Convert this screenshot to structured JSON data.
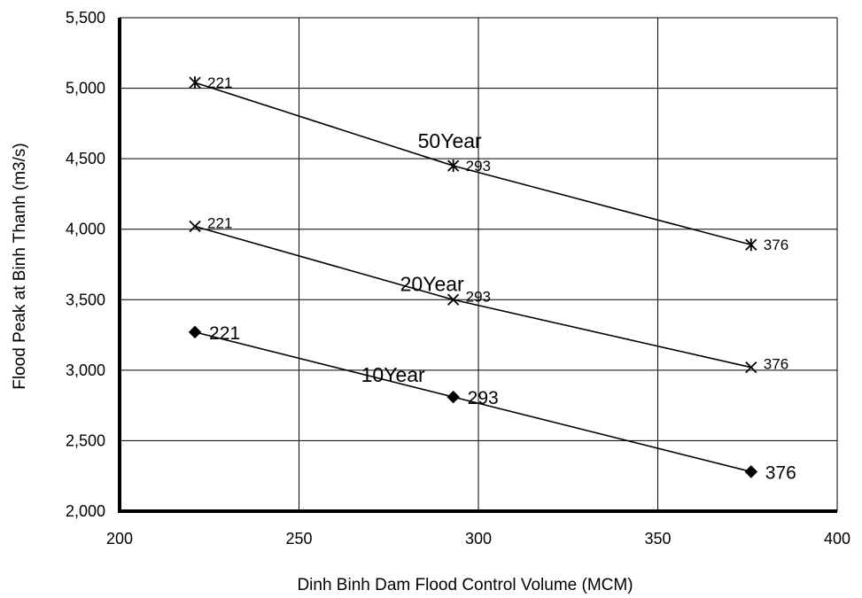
{
  "chart_data": {
    "type": "line",
    "title": "",
    "xlabel": "Dinh Binh Dam Flood Control Volume (MCM)",
    "ylabel": "Flood Peak at Binh Thanh (m3/s)",
    "xlim": [
      200,
      400
    ],
    "ylim": [
      2000,
      5500
    ],
    "x_ticks": [
      200,
      250,
      300,
      350,
      400
    ],
    "y_ticks": [
      2000,
      2500,
      3000,
      3500,
      4000,
      4500,
      5000,
      5500
    ],
    "x_tick_labels": [
      "200",
      "250",
      "300",
      "350",
      "400"
    ],
    "y_tick_labels": [
      "2,000",
      "2,500",
      "3,000",
      "3,500",
      "4,000",
      "4,500",
      "5,000",
      "5,500"
    ],
    "grid": true,
    "legend": "none",
    "series": [
      {
        "name": "50Year",
        "marker": "asterisk",
        "x": [
          221,
          293,
          376
        ],
        "y": [
          5040,
          4450,
          3890
        ],
        "point_labels": [
          "221",
          "293",
          "376"
        ]
      },
      {
        "name": "20Year",
        "marker": "cross",
        "x": [
          221,
          293,
          376
        ],
        "y": [
          4020,
          3500,
          3020
        ],
        "point_labels": [
          "221",
          "293",
          "376"
        ]
      },
      {
        "name": "10Year",
        "marker": "diamond",
        "x": [
          221,
          293,
          376
        ],
        "y": [
          3270,
          2810,
          2280
        ],
        "point_labels": [
          "221",
          "293",
          "376"
        ]
      }
    ]
  }
}
